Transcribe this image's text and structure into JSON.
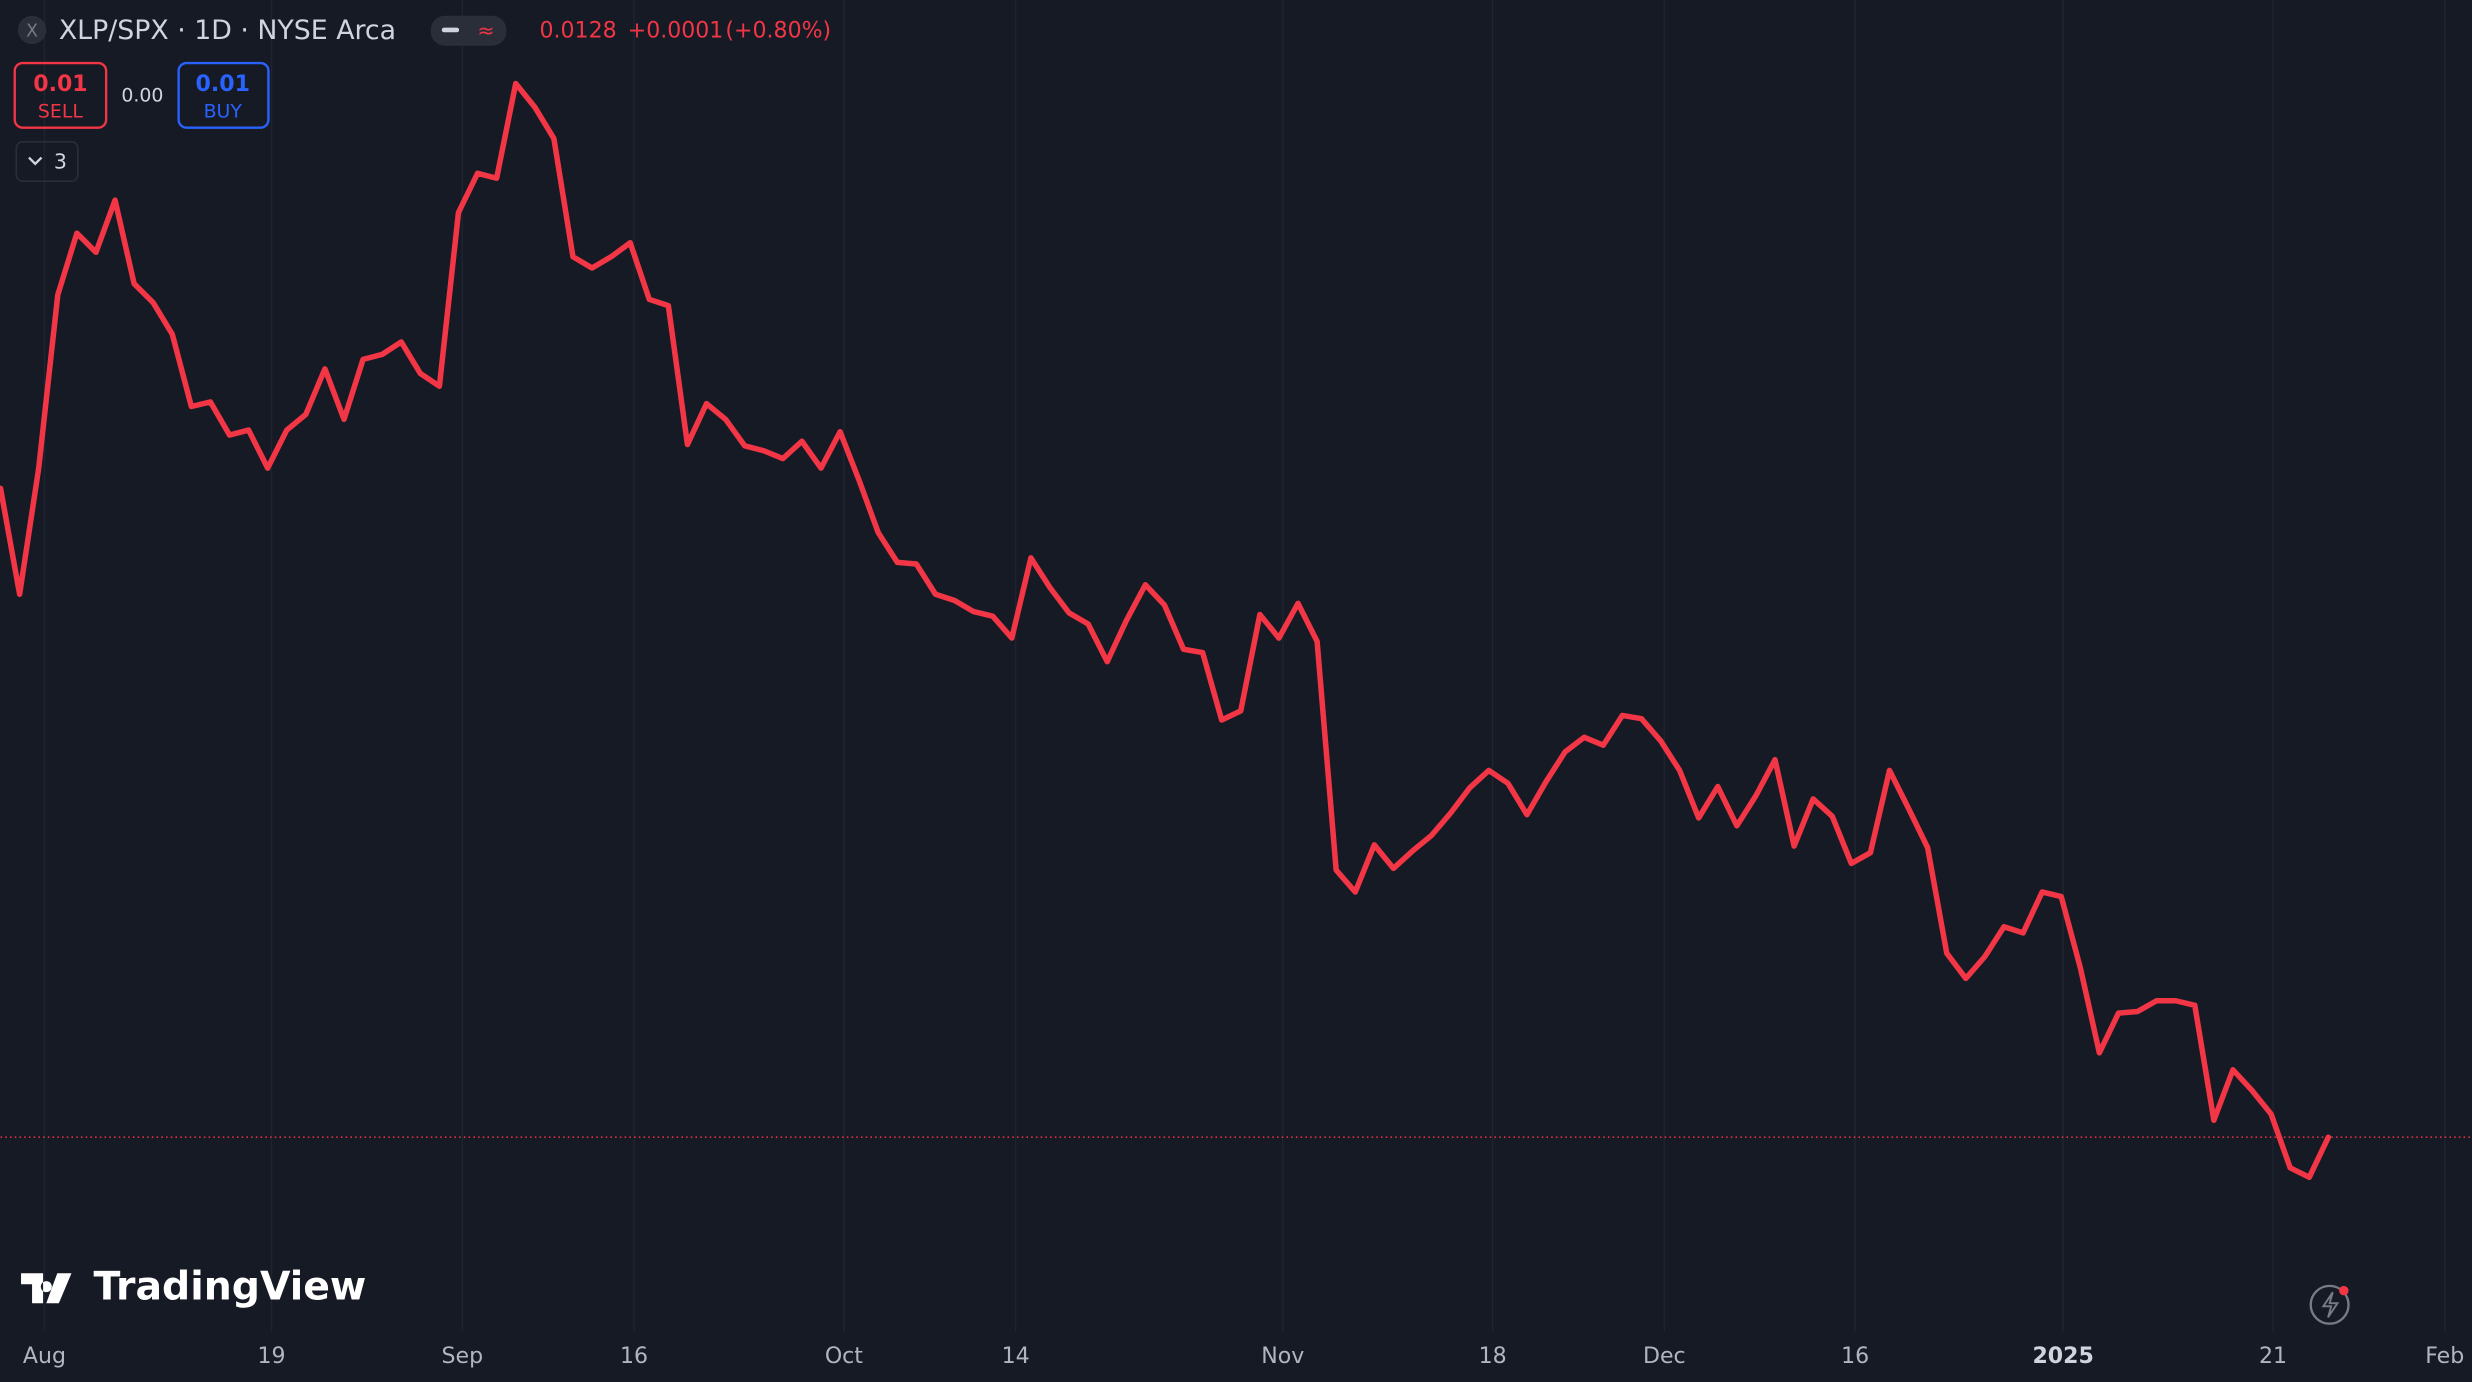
{
  "header": {
    "close_icon": "X",
    "symbol": "XLP/SPX · 1D · NYSE Arca",
    "price": "0.0128",
    "change": "+0.0001",
    "change_pct": "(+0.80%)",
    "sell_price": "0.01",
    "sell_label": "SELL",
    "spread": "0.00",
    "buy_price": "0.01",
    "buy_label": "BUY",
    "indicators_count": "3"
  },
  "watermark": "TradingView",
  "chart_data": {
    "type": "line",
    "title": "XLP/SPX · 1D · NYSE Arca",
    "series": [
      {
        "name": "XLP/SPX",
        "color": "#f23645",
        "values": [
          0.014369,
          0.014113,
          0.014418,
          0.014837,
          0.014986,
          0.01494,
          0.015066,
          0.014864,
          0.014818,
          0.014742,
          0.014567,
          0.014578,
          0.014498,
          0.01451,
          0.014418,
          0.01451,
          0.014548,
          0.014658,
          0.014536,
          0.014681,
          0.014693,
          0.014723,
          0.014647,
          0.014616,
          0.015036,
          0.015131,
          0.015119,
          0.015348,
          0.015291,
          0.015215,
          0.014929,
          0.014902,
          0.014929,
          0.014963,
          0.014826,
          0.014811,
          0.014475,
          0.014574,
          0.014536,
          0.014472,
          0.01446,
          0.014441,
          0.014483,
          0.014418,
          0.014506,
          0.014388,
          0.014262,
          0.01419,
          0.014186,
          0.014113,
          0.014098,
          0.014071,
          0.01406,
          0.014007,
          0.014201,
          0.014129,
          0.014068,
          0.014041,
          0.01395,
          0.014049,
          0.014136,
          0.014087,
          0.01398,
          0.013972,
          0.013809,
          0.013831,
          0.014064,
          0.014007,
          0.014091,
          0.013999,
          0.013446,
          0.013393,
          0.013507,
          0.01345,
          0.013492,
          0.01353,
          0.013584,
          0.013645,
          0.013687,
          0.013656,
          0.01358,
          0.01366,
          0.013732,
          0.013767,
          0.013748,
          0.01382,
          0.013812,
          0.013759,
          0.013687,
          0.013572,
          0.013648,
          0.013553,
          0.013626,
          0.013713,
          0.013504,
          0.013618,
          0.013576,
          0.013462,
          0.013488,
          0.013687,
          0.013595,
          0.0135,
          0.013245,
          0.013184,
          0.013237,
          0.013309,
          0.013294,
          0.013393,
          0.013382,
          0.01321,
          0.013004,
          0.0131,
          0.013104,
          0.01313,
          0.01313,
          0.013119,
          0.012841,
          0.012963,
          0.012913,
          0.012856,
          0.012726,
          0.012703,
          0.0128
        ]
      }
    ],
    "xlim": [
      0,
      129.5
    ],
    "xticks": [
      {
        "value": 2.3,
        "label": "Aug"
      },
      {
        "value": 14.2,
        "label": "19"
      },
      {
        "value": 24.2,
        "label": "Sep"
      },
      {
        "value": 33.2,
        "label": "16"
      },
      {
        "value": 44.2,
        "label": "Oct"
      },
      {
        "value": 53.2,
        "label": "14"
      },
      {
        "value": 67.2,
        "label": "Nov"
      },
      {
        "value": 78.2,
        "label": "18"
      },
      {
        "value": 87.2,
        "label": "Dec"
      },
      {
        "value": 97.2,
        "label": "16"
      },
      {
        "value": 108.1,
        "label": "2025"
      },
      {
        "value": 119.1,
        "label": "21"
      },
      {
        "value": 128.1,
        "label": "Feb"
      }
    ],
    "ylim": [
      0.01233,
      0.01555
    ],
    "grid": true
  }
}
